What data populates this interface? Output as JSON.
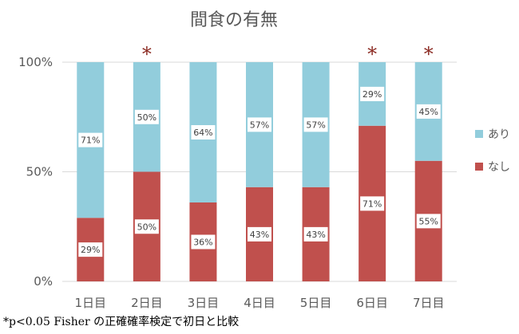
{
  "chart_data": {
    "type": "bar",
    "stacked": true,
    "percent": true,
    "title": "間食の有無",
    "categories": [
      "1日目",
      "2日目",
      "3日目",
      "4日目",
      "5日目",
      "6日目",
      "7日目"
    ],
    "series": [
      {
        "name": "なし",
        "values": [
          29,
          50,
          36,
          43,
          43,
          71,
          55
        ],
        "labels": [
          "29%",
          "50%",
          "36%",
          "43%",
          "43%",
          "71%",
          "55%"
        ],
        "color": "#c0504d"
      },
      {
        "name": "あり",
        "values": [
          71,
          50,
          64,
          57,
          57,
          29,
          45
        ],
        "labels": [
          "71%",
          "50%",
          "64%",
          "57%",
          "57%",
          "29%",
          "45%"
        ],
        "color": "#92cddc"
      }
    ],
    "y_ticks": [
      "0%",
      "50%",
      "100%"
    ],
    "ylim": [
      0,
      100
    ],
    "legend_position": "right",
    "significance": [
      false,
      true,
      false,
      false,
      false,
      true,
      true
    ],
    "significance_marker": "*",
    "grid": true
  },
  "colors": {
    "gridline": "#d9d9d9",
    "text": "#595959",
    "star": "#8b2a22"
  },
  "footnote": "*p<0.05 Fisher の正確確率検定で初日と比較"
}
